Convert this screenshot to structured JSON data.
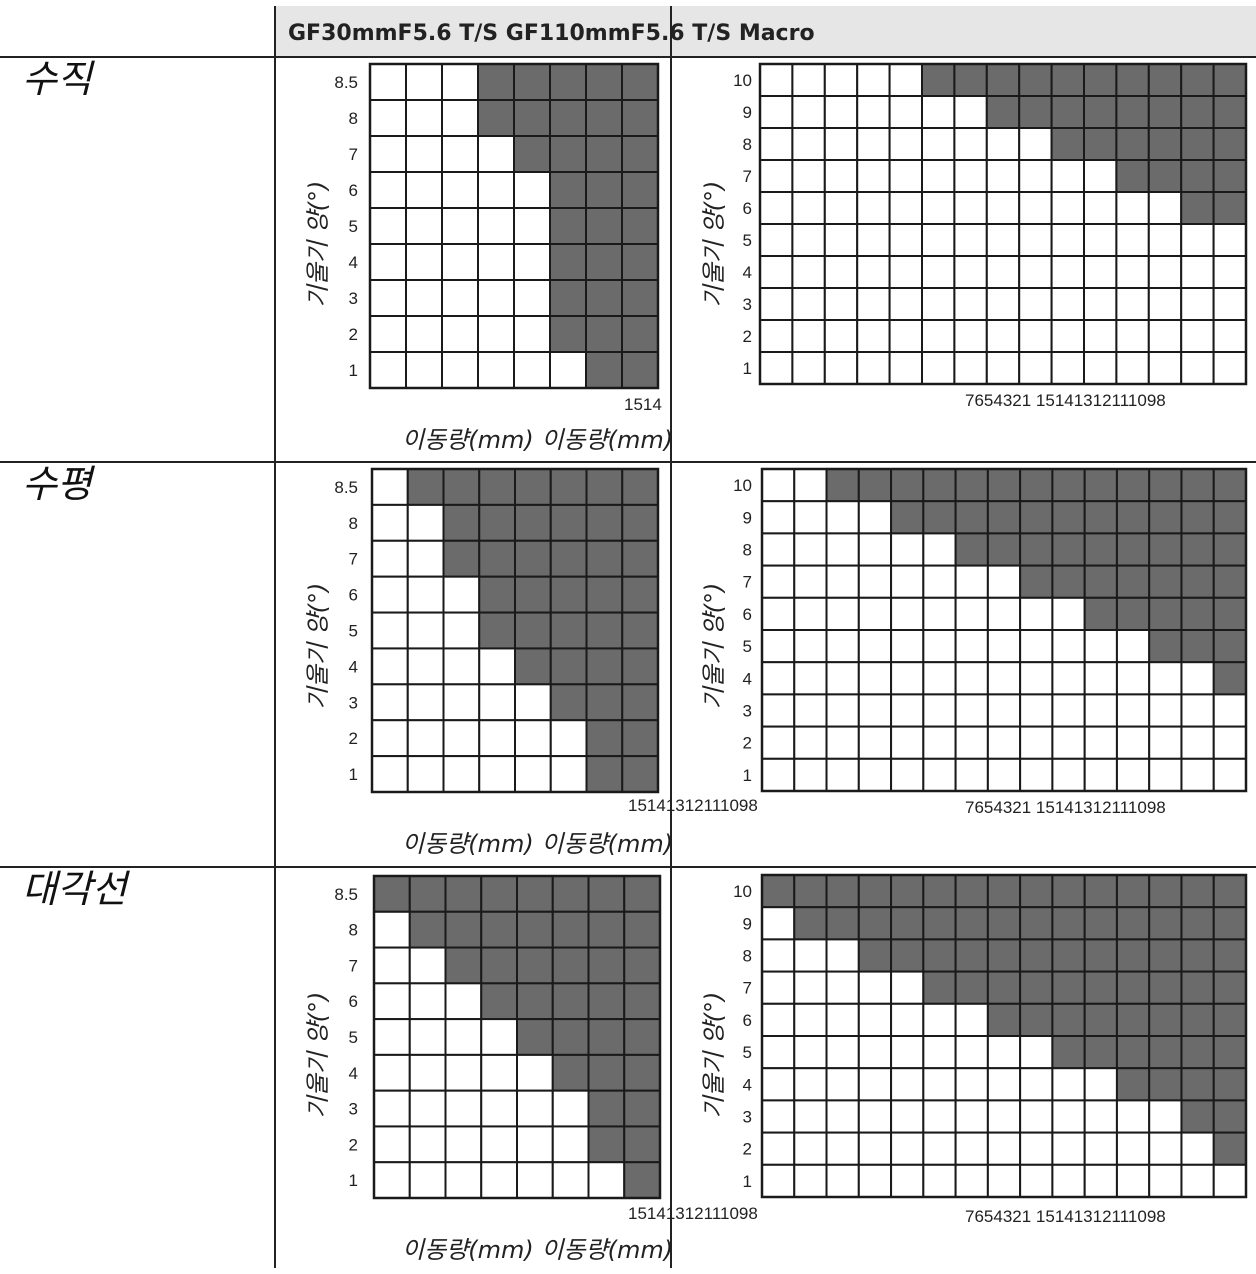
{
  "header": {
    "title": "GF30mmF5.6 T/S GF110mmF5.6 T/S Macro"
  },
  "row_labels": [
    "수직",
    "수평",
    "대각선"
  ],
  "axis": {
    "ylabel": "기울기 양(°)",
    "xlabel": "이동량(mm) 이동량(mm)"
  },
  "x_tick_text": {
    "left": [
      "1514",
      "15141312111098",
      "15141312111098"
    ],
    "right": [
      "7654321 15141312111098",
      "7654321 15141312111098",
      "7654321 15141312111098"
    ]
  },
  "colors": {
    "shaded": "#6b6b6b",
    "grid": "#1a1a1a",
    "header_bg": "#e6e6e6"
  },
  "chart_data": [
    {
      "type": "heatmap",
      "lens": "GF30mmF5.6 T/S",
      "orientation": "수직",
      "cols": 8,
      "y_ticks": [
        "8.5",
        "8",
        "7",
        "6",
        "5",
        "4",
        "3",
        "2",
        "1"
      ],
      "shaded_from_col": [
        3,
        3,
        4,
        5,
        5,
        5,
        5,
        5,
        6
      ]
    },
    {
      "type": "heatmap",
      "lens": "GF110mmF5.6 T/S Macro",
      "orientation": "수직",
      "cols": 15,
      "y_ticks": [
        "10",
        "9",
        "8",
        "7",
        "6",
        "5",
        "4",
        "3",
        "2",
        "1"
      ],
      "shaded_from_col": [
        5,
        7,
        9,
        11,
        13,
        15,
        15,
        15,
        15,
        15
      ]
    },
    {
      "type": "heatmap",
      "lens": "GF30mmF5.6 T/S",
      "orientation": "수평",
      "cols": 8,
      "y_ticks": [
        "8.5",
        "8",
        "7",
        "6",
        "5",
        "4",
        "3",
        "2",
        "1"
      ],
      "shaded_from_col": [
        1,
        2,
        2,
        3,
        3,
        4,
        5,
        6,
        6
      ]
    },
    {
      "type": "heatmap",
      "lens": "GF110mmF5.6 T/S Macro",
      "orientation": "수평",
      "cols": 15,
      "y_ticks": [
        "10",
        "9",
        "8",
        "7",
        "6",
        "5",
        "4",
        "3",
        "2",
        "1"
      ],
      "shaded_from_col": [
        2,
        4,
        6,
        8,
        10,
        12,
        14,
        15,
        15,
        15
      ]
    },
    {
      "type": "heatmap",
      "lens": "GF30mmF5.6 T/S",
      "orientation": "대각선",
      "cols": 8,
      "y_ticks": [
        "8.5",
        "8",
        "7",
        "6",
        "5",
        "4",
        "3",
        "2",
        "1"
      ],
      "shaded_from_col": [
        0,
        1,
        2,
        3,
        4,
        5,
        6,
        6,
        7
      ]
    },
    {
      "type": "heatmap",
      "lens": "GF110mmF5.6 T/S Macro",
      "orientation": "대각선",
      "cols": 15,
      "y_ticks": [
        "10",
        "9",
        "8",
        "7",
        "6",
        "5",
        "4",
        "3",
        "2",
        "1"
      ],
      "shaded_from_col": [
        0,
        1,
        3,
        5,
        7,
        9,
        11,
        13,
        14,
        15
      ]
    }
  ]
}
